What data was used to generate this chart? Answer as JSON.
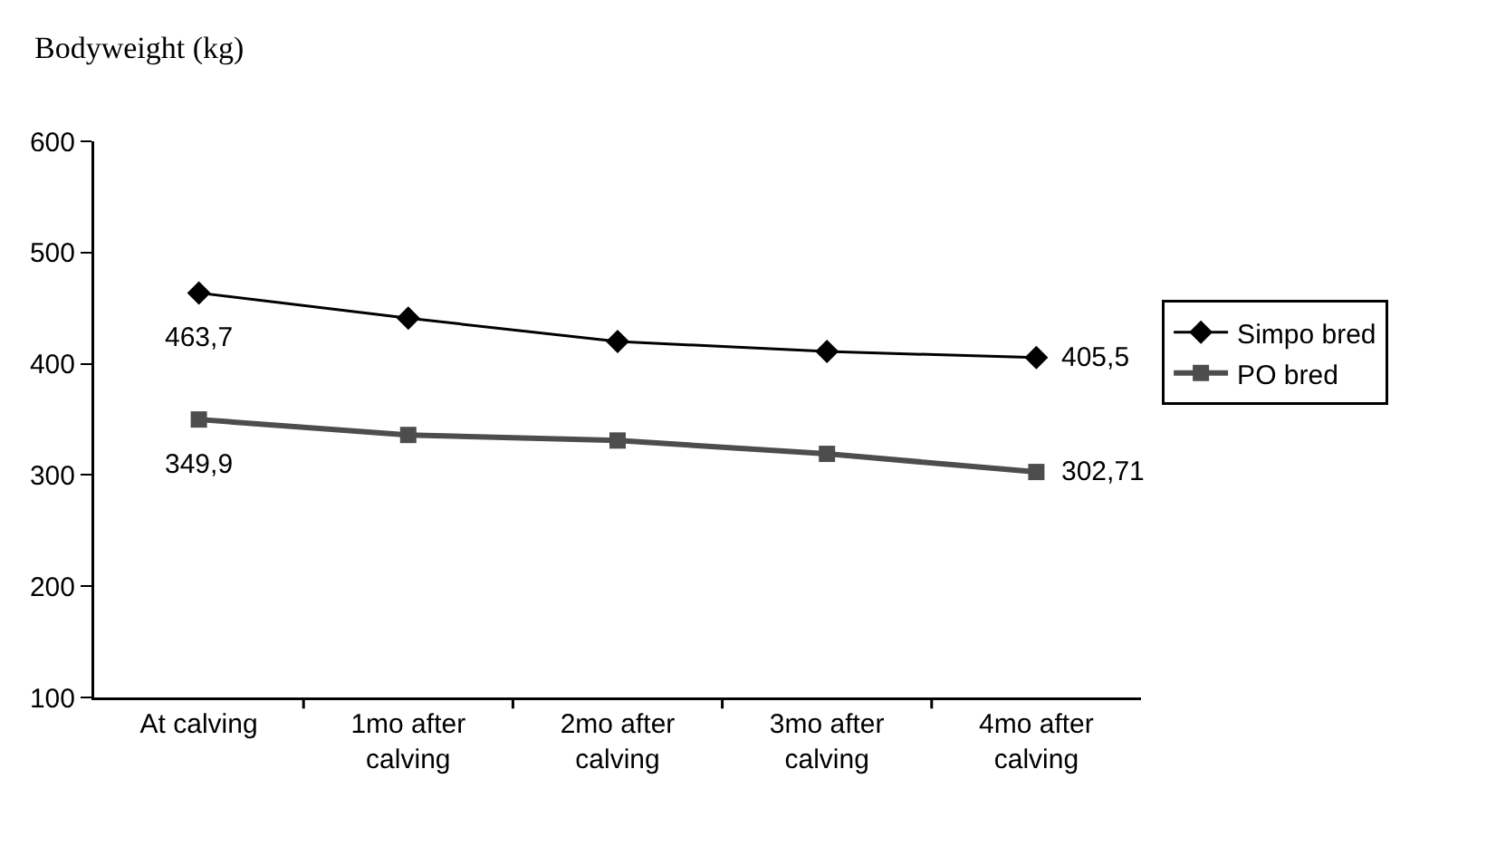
{
  "chart_data": {
    "type": "line",
    "ylabel": "Bodyweight (kg)",
    "categories": [
      "At calving",
      "1mo after calving",
      "2mo after calving",
      "3mo after calving",
      "4mo after calving"
    ],
    "series": [
      {
        "name": "Simpo bred",
        "color": "#000000",
        "marker": "diamond",
        "values": [
          463.7,
          441,
          420,
          411,
          405.5
        ],
        "value_labels": [
          "463,7",
          null,
          null,
          null,
          "405,5"
        ]
      },
      {
        "name": "PO bred",
        "color": "#4d4d4d",
        "marker": "square",
        "values": [
          349.9,
          336,
          331,
          319,
          302.71
        ],
        "value_labels": [
          "349,9",
          null,
          null,
          null,
          "302,71"
        ]
      }
    ],
    "ylim": [
      100,
      600
    ],
    "yticks": [
      100,
      200,
      300,
      400,
      500,
      600
    ],
    "grid": false,
    "legend": "right"
  }
}
